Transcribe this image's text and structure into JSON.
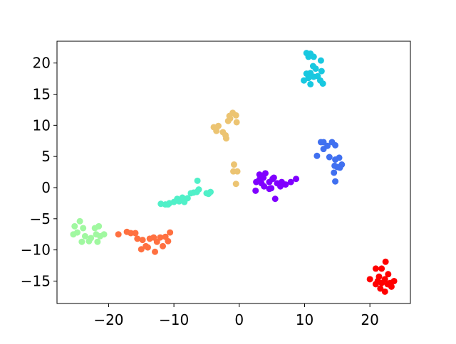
{
  "chart_data": {
    "type": "scatter",
    "xlim": [
      -27.9,
      26.2
    ],
    "ylim": [
      -18.6,
      23.5
    ],
    "xticks": [
      {
        "value": -20,
        "label": "−20"
      },
      {
        "value": -10,
        "label": "−10"
      },
      0,
      10,
      20
    ],
    "yticks": [
      {
        "value": -15,
        "label": "−15"
      },
      {
        "value": -10,
        "label": "−10"
      },
      {
        "value": -5,
        "label": "−5"
      },
      0,
      5,
      10,
      15,
      20
    ],
    "grid": false,
    "series": [
      {
        "color": "#8000ff",
        "x": [
          2.6,
          3.1,
          2.5,
          3.4,
          4.0,
          4.6,
          5.1,
          4.9,
          5.5,
          5.8,
          6.5,
          7.1,
          7.9,
          8.7,
          3.8,
          5.3,
          4.6,
          6.3,
          3.1,
          3.7
        ],
        "values": [
          0.9,
          2.1,
          -0.5,
          0.7,
          2.3,
          0.9,
          1.4,
          -0.1,
          -1.8,
          0.7,
          0.9,
          0.5,
          0.9,
          1.4,
          0.2,
          1.6,
          -0.2,
          0.2,
          1.3,
          1.6
        ]
      },
      {
        "color": "#4070f0",
        "x": [
          12.5,
          12.9,
          11.9,
          13.5,
          14.2,
          14.7,
          13.8,
          14.7,
          15.3,
          14.6,
          15.0,
          15.7,
          14.5,
          14.7,
          12.9,
          15.4
        ],
        "values": [
          7.3,
          7.3,
          5.1,
          6.7,
          7.3,
          6.8,
          4.9,
          4.5,
          4.8,
          3.5,
          3.3,
          3.7,
          2.4,
          1.0,
          6.2,
          3.2
        ]
      },
      {
        "color": "#18c8e0",
        "x": [
          10.3,
          10.9,
          11.4,
          10.6,
          12.5,
          11.3,
          11.7,
          12.6,
          10.3,
          10.9,
          11.4,
          9.9,
          10.9,
          12.8,
          12.4,
          12.0,
          10.6
        ],
        "values": [
          21.6,
          21.5,
          21.0,
          21.0,
          20.4,
          19.5,
          19.1,
          18.7,
          18.3,
          18.4,
          17.8,
          17.2,
          16.6,
          16.7,
          17.2,
          17.9,
          17.6
        ]
      },
      {
        "color": "#50f0c8",
        "x": [
          -12.0,
          -11.3,
          -10.7,
          -10.0,
          -9.5,
          -8.7,
          -8.4,
          -7.9,
          -7.4,
          -7.0,
          -6.5,
          -6.2,
          -6.4,
          -5.0,
          -4.4,
          -4.7,
          -9.2,
          -10.9
        ],
        "values": [
          -2.6,
          -2.7,
          -2.5,
          -2.3,
          -1.8,
          -1.6,
          -2.3,
          -1.7,
          -0.9,
          -0.8,
          -0.7,
          -0.3,
          1.1,
          -0.9,
          -0.7,
          -1.0,
          -2.2,
          -2.7
        ]
      },
      {
        "color": "#a0f8a0",
        "x": [
          -24.4,
          -25.2,
          -24.8,
          -23.9,
          -25.4,
          -23.6,
          -24.1,
          -23.0,
          -22.1,
          -21.5,
          -21.9,
          -21.3,
          -20.7,
          -21.7,
          -22.7
        ],
        "values": [
          -5.4,
          -6.2,
          -7.2,
          -6.5,
          -7.5,
          -7.8,
          -8.7,
          -8.6,
          -6.5,
          -6.2,
          -7.5,
          -7.8,
          -7.5,
          -8.7,
          -8.1
        ]
      },
      {
        "color": "#ff7040",
        "x": [
          -18.5,
          -17.2,
          -16.6,
          -15.9,
          -15.6,
          -14.8,
          -15.0,
          -14.3,
          -13.7,
          -13.1,
          -14.0,
          -12.6,
          -12.9,
          -12.1,
          -11.3,
          -10.6,
          -10.9,
          -11.7
        ],
        "values": [
          -7.5,
          -7.1,
          -7.3,
          -7.3,
          -8.2,
          -8.4,
          -9.9,
          -9.4,
          -8.2,
          -8.0,
          -9.6,
          -8.7,
          -10.3,
          -8.0,
          -7.9,
          -7.2,
          -8.6,
          -9.4
        ]
      },
      {
        "color": "#ecc472",
        "x": [
          -3.9,
          -3.5,
          -3.2,
          -2.5,
          -2.1,
          -2.0,
          -1.7,
          -1.5,
          -1.0,
          -0.5,
          -0.4,
          -1.4,
          -0.8,
          -0.9,
          -0.3,
          -0.5
        ],
        "values": [
          9.7,
          9.1,
          9.9,
          8.9,
          8.4,
          7.9,
          10.7,
          11.5,
          12.0,
          11.6,
          10.5,
          11.1,
          3.7,
          2.6,
          2.6,
          0.6
        ]
      },
      {
        "color": "#ff0000",
        "x": [
          20.0,
          20.9,
          21.8,
          22.4,
          21.4,
          22.3,
          22.8,
          23.1,
          23.7,
          20.9,
          21.6,
          22.3,
          23.3,
          21.8,
          22.7,
          21.2
        ],
        "values": [
          -14.7,
          -13.0,
          -13.0,
          -11.9,
          -14.3,
          -14.7,
          -13.9,
          -15.3,
          -15.0,
          -15.5,
          -16.2,
          -16.7,
          -15.9,
          -15.3,
          -15.5,
          -15.0
        ]
      }
    ]
  }
}
